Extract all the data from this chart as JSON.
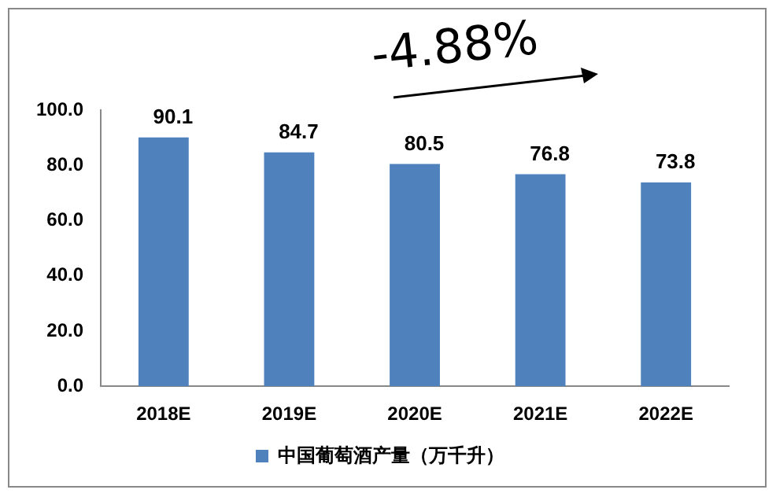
{
  "chart_data": {
    "type": "bar",
    "categories": [
      "2018E",
      "2019E",
      "2020E",
      "2021E",
      "2022E"
    ],
    "series": [
      {
        "name": "中国葡萄酒产量（万千升）",
        "color": "#4f81bd",
        "values": [
          90.1,
          84.7,
          80.5,
          76.8,
          73.8
        ]
      }
    ],
    "ylim": [
      0,
      100
    ],
    "yticks": [
      {
        "value": 0,
        "label": "0.0"
      },
      {
        "value": 20,
        "label": "20.0"
      },
      {
        "value": 40,
        "label": "40.0"
      },
      {
        "value": 60,
        "label": "60.0"
      },
      {
        "value": 80,
        "label": "80.0"
      },
      {
        "value": 100,
        "label": "100.0"
      }
    ],
    "data_labels": true,
    "legend": "bottom",
    "grid": false,
    "annotations": [
      "-4.88%"
    ]
  }
}
